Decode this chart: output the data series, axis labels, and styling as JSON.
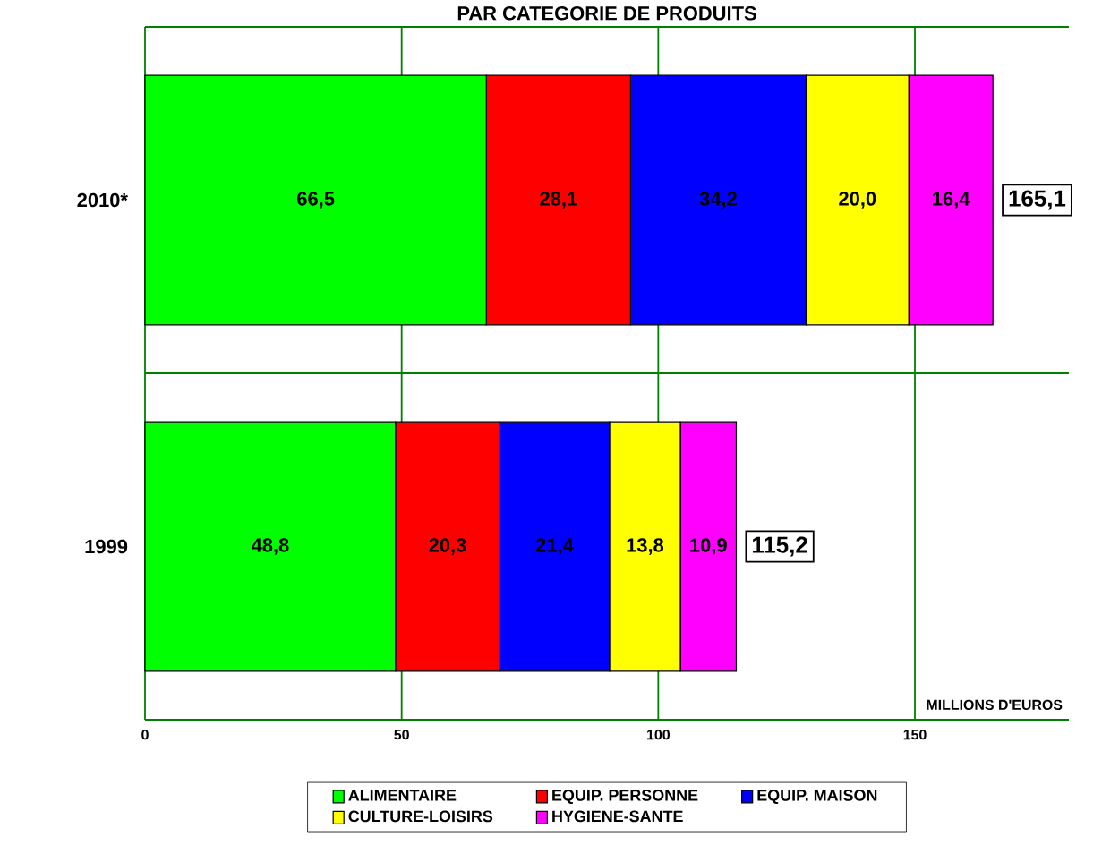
{
  "chart_data": {
    "type": "bar",
    "orientation": "horizontal",
    "stacked": true,
    "title": "PAR CATEGORIE DE PRODUITS",
    "xlabel": "MILLIONS D'EUROS",
    "categories": [
      "2010*",
      "1999"
    ],
    "series": [
      {
        "name": "ALIMENTAIRE",
        "color": "#00ff00",
        "values": [
          66.5,
          48.8
        ],
        "value_labels": [
          "66,5",
          "48,8"
        ]
      },
      {
        "name": "EQUIP. PERSONNE",
        "color": "#ff0000",
        "values": [
          28.1,
          20.3
        ],
        "value_labels": [
          "28,1",
          "20,3"
        ]
      },
      {
        "name": "EQUIP. MAISON",
        "color": "#0000ff",
        "values": [
          34.2,
          21.4
        ],
        "value_labels": [
          "34,2",
          "21,4"
        ]
      },
      {
        "name": "CULTURE-LOISIRS",
        "color": "#ffff00",
        "values": [
          20.0,
          13.8
        ],
        "value_labels": [
          "20,0",
          "13,8"
        ]
      },
      {
        "name": "HYGIENE-SANTE",
        "color": "#ff00ff",
        "values": [
          16.4,
          10.9
        ],
        "value_labels": [
          "16,4",
          "10,9"
        ]
      }
    ],
    "totals": [
      "165,1",
      "115,2"
    ],
    "xlim": [
      0,
      180
    ],
    "xticks": [
      0,
      50,
      100,
      150
    ],
    "grid": true,
    "legend": "bottom"
  }
}
